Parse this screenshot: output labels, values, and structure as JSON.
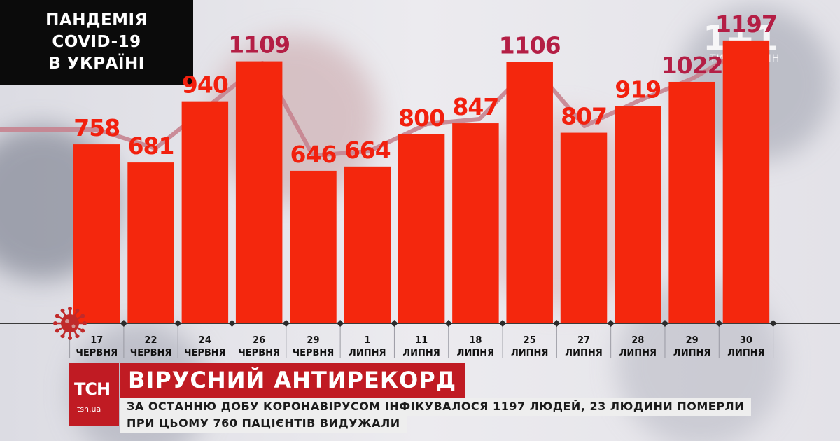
{
  "panel": {
    "line1": "ПАНДЕМІЯ",
    "line2": "COVID-19",
    "line3": "В УКРАЇНІ"
  },
  "logo": {
    "digits": "1+1",
    "slogan": "ТИ НЕ ОДИН"
  },
  "chart_data": {
    "type": "bar",
    "categories": [
      [
        "17",
        "ЧЕРВНЯ"
      ],
      [
        "22",
        "ЧЕРВНЯ"
      ],
      [
        "24",
        "ЧЕРВНЯ"
      ],
      [
        "26",
        "ЧЕРВНЯ"
      ],
      [
        "29",
        "ЧЕРВНЯ"
      ],
      [
        "1",
        "ЛИПНЯ"
      ],
      [
        "11",
        "ЛИПНЯ"
      ],
      [
        "18",
        "ЛИПНЯ"
      ],
      [
        "25",
        "ЛИПНЯ"
      ],
      [
        "27",
        "ЛИПНЯ"
      ],
      [
        "28",
        "ЛИПНЯ"
      ],
      [
        "29",
        "ЛИПНЯ"
      ],
      [
        "30",
        "ЛИПНЯ"
      ]
    ],
    "values": [
      758,
      681,
      940,
      1109,
      646,
      664,
      800,
      847,
      1106,
      807,
      919,
      1022,
      1197
    ],
    "ylim": [
      0,
      1250
    ],
    "colors": {
      "bar": "#f4270d",
      "label_default": "#f2200e",
      "label_highlight": "#b41e45",
      "trend_line": "#c7838f"
    },
    "highlighted": [
      3,
      8,
      11,
      12
    ]
  },
  "ticker": {
    "brand": "ТСН",
    "site": "tsn.ua",
    "headline": "ВІРУСНИЙ АНТИРЕКОРД",
    "line1": "ЗА ОСТАННЮ ДОБУ КОРОНАВІРУСОМ ІНФІКУВАЛОСЯ 1197 ЛЮДЕЙ, 23 ЛЮДИНИ ПОМЕРЛИ",
    "line2": "ПРИ ЦЬОМУ 760 ПАЦІЄНТІВ ВИДУЖАЛИ"
  }
}
